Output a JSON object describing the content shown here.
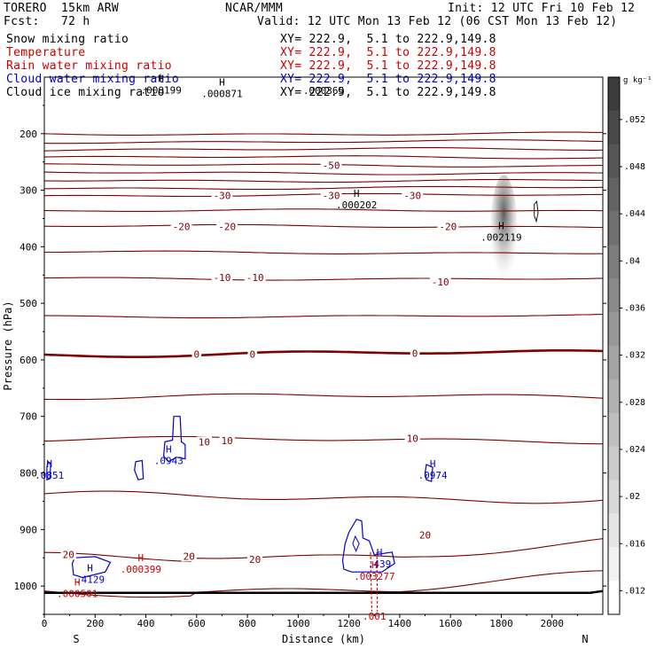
{
  "header": {
    "model": "TORERO  15km ARW",
    "org": "NCAR/MMM",
    "init": "Init: 12 UTC Fri 10 Feb 12",
    "fcst": "Fcst:   72 h",
    "valid": "Valid: 12 UTC Mon 13 Feb 12 (06 CST Mon 13 Feb 12)",
    "legend": [
      {
        "name": "Snow mixing ratio",
        "xy": "XY= 222.9,  5.1 to 222.9,149.8",
        "color": "#000000"
      },
      {
        "name": "Temperature",
        "xy": "XY= 222.9,  5.1 to 222.9,149.8",
        "color": "#cc0000"
      },
      {
        "name": "Rain water mixing ratio",
        "xy": "XY= 222.9,  5.1 to 222.9,149.8",
        "color": "#cc0000"
      },
      {
        "name": "Cloud water mixing ratio",
        "xy": "XY= 222.9,  5.1 to 222.9,149.8",
        "color": "#0000cc"
      },
      {
        "name": "Cloud ice mixing ratio",
        "xy": "XY= 222.9,  5.1 to 222.9,149.8",
        "color": "#000000"
      }
    ]
  },
  "chart_data": {
    "type": "contour-cross-section",
    "xlabel": "Distance (km)",
    "ylabel": "Pressure (hPa)",
    "xlim": [
      0,
      2200
    ],
    "ylim": [
      1050,
      100
    ],
    "x_ticks": [
      0,
      200,
      400,
      600,
      800,
      1000,
      1200,
      1400,
      1600,
      1800,
      2000
    ],
    "y_ticks": [
      200,
      300,
      400,
      500,
      600,
      700,
      800,
      900,
      1000
    ],
    "endpoints": {
      "left": "S",
      "right": "N"
    },
    "temperature_contour_labels": [
      {
        "x": 1130,
        "p": 256,
        "text": "-50"
      },
      {
        "x": 700,
        "p": 309,
        "text": "-30"
      },
      {
        "x": 1130,
        "p": 309,
        "text": "-30"
      },
      {
        "x": 1450,
        "p": 309,
        "text": "-30"
      },
      {
        "x": 540,
        "p": 364,
        "text": "-20"
      },
      {
        "x": 720,
        "p": 364,
        "text": "-20"
      },
      {
        "x": 1590,
        "p": 364,
        "text": "-20"
      },
      {
        "x": 700,
        "p": 454,
        "text": "-10"
      },
      {
        "x": 830,
        "p": 454,
        "text": "-10"
      },
      {
        "x": 1560,
        "p": 462,
        "text": "-10"
      },
      {
        "x": 600,
        "p": 590,
        "text": "0"
      },
      {
        "x": 820,
        "p": 590,
        "text": "0"
      },
      {
        "x": 1460,
        "p": 588,
        "text": "0"
      },
      {
        "x": 630,
        "p": 745,
        "text": "10"
      },
      {
        "x": 720,
        "p": 743,
        "text": "10"
      },
      {
        "x": 1450,
        "p": 739,
        "text": "10"
      },
      {
        "x": 95,
        "p": 944,
        "text": "20"
      },
      {
        "x": 570,
        "p": 947,
        "text": "20"
      },
      {
        "x": 830,
        "p": 953,
        "text": "20"
      },
      {
        "x": 1500,
        "p": 910,
        "text": "20"
      }
    ],
    "temperature_levels": [
      -70,
      -65,
      -60,
      -55,
      -50,
      -45,
      -40,
      -35,
      -30,
      -25,
      -20,
      -15,
      -10,
      -5,
      0,
      5,
      10,
      15,
      20,
      25
    ],
    "extrema": [
      {
        "x": 460,
        "p": 115,
        "label": "H",
        "value": ".000199",
        "color": "#000000"
      },
      {
        "x": 700,
        "p": 121,
        "label": "H",
        "value": ".000871",
        "color": "#000000"
      },
      {
        "x": 1100,
        "p": 116,
        "label": "",
        "value": ".000365",
        "color": "#000000"
      },
      {
        "x": 1230,
        "p": 318,
        "label": "H",
        "value": ".000202",
        "color": "#000000"
      },
      {
        "x": 1800,
        "p": 375,
        "label": "H",
        "value": ".002119",
        "color": "#000000"
      },
      {
        "x": 20,
        "p": 796,
        "label": "H",
        "value": ".0851",
        "color": "#0000cc"
      },
      {
        "x": 490,
        "p": 770,
        "label": "H",
        "value": ".0943",
        "color": "#0000cc"
      },
      {
        "x": 1530,
        "p": 796,
        "label": "H",
        "value": ".0974",
        "color": "#0000cc"
      },
      {
        "x": 180,
        "p": 980,
        "label": "H",
        "value": ".4129",
        "color": "#0000cc"
      },
      {
        "x": 1320,
        "p": 953,
        "label": "H",
        "value": ".439",
        "color": "#0000cc"
      },
      {
        "x": 130,
        "p": 1005,
        "label": "H",
        "value": ".000501",
        "color": "#cc0000"
      },
      {
        "x": 380,
        "p": 962,
        "label": "H",
        "value": ".000399",
        "color": "#cc0000"
      },
      {
        "x": 1300,
        "p": 975,
        "label": "H",
        "value": ".003277",
        "color": "#cc0000"
      },
      {
        "x": 1300,
        "p": 1045,
        "label": "",
        "value": ".001",
        "color": "#cc0000"
      }
    ],
    "colorbar": {
      "unit": "g kg⁻¹",
      "labels": [
        ".052",
        ".048",
        ".044",
        ".04",
        ".036",
        ".032",
        ".028",
        ".024",
        ".02",
        ".016",
        ".012"
      ]
    },
    "colors": {
      "temperature": "#800000",
      "zero_isotherm": "#800000",
      "cloud_water": "#0000cc",
      "rain": "#cc0000",
      "axis": "#000000"
    }
  }
}
